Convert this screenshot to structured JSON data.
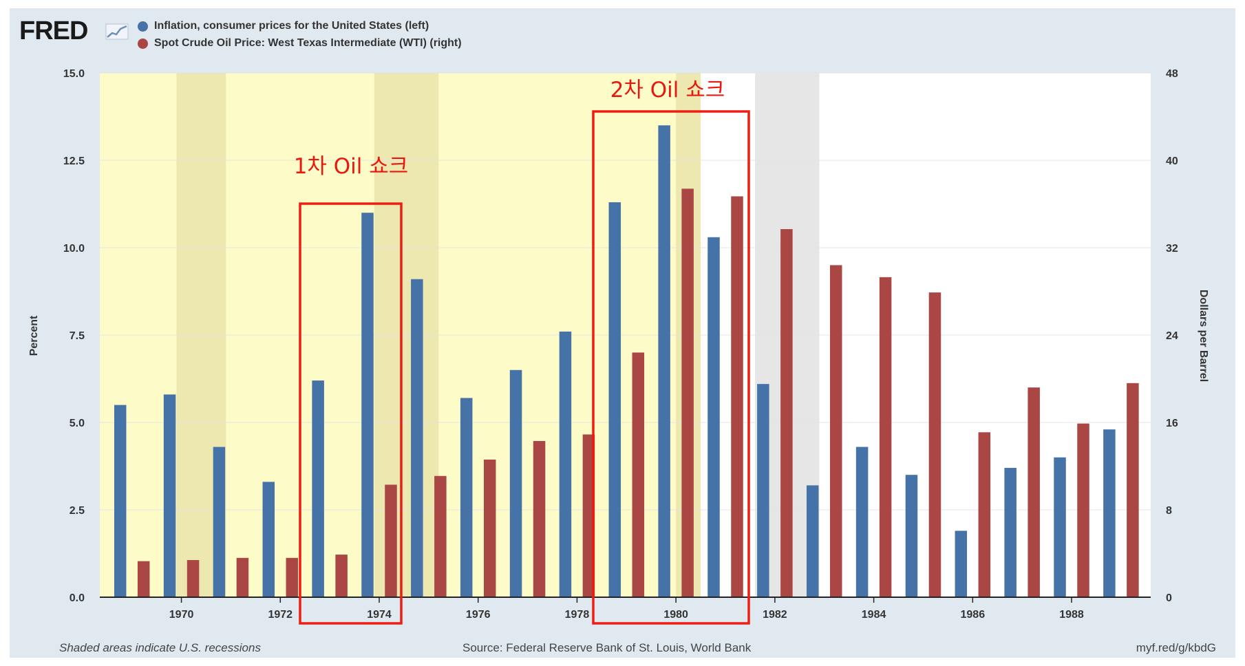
{
  "header": {
    "logo": "FRED",
    "legend": [
      {
        "label": "Inflation, consumer prices for the United States (left)",
        "color": "#4572a7"
      },
      {
        "label": "Spot Crude Oil Price: West Texas Intermediate (WTI) (right)",
        "color": "#aa4643"
      }
    ]
  },
  "footer": {
    "note": "Shaded areas indicate U.S. recessions",
    "source": "Source: Federal Reserve Bank of St. Louis, World Bank",
    "link": "myf.red/g/kbdG"
  },
  "annotations": [
    {
      "label": "1차 Oil 쇼크",
      "years": [
        1973,
        1974
      ]
    },
    {
      "label": "2차 Oil 쇼크",
      "years": [
        1979,
        1981
      ]
    }
  ],
  "highlight": {
    "label": "",
    "from": 1968,
    "to": 1980.5,
    "color": "#fdfbc8"
  },
  "chart_data": {
    "type": "bar",
    "categories": [
      1969,
      1970,
      1971,
      1972,
      1973,
      1974,
      1975,
      1976,
      1977,
      1978,
      1979,
      1980,
      1981,
      1982,
      1983,
      1984,
      1985,
      1986,
      1987,
      1988,
      1989
    ],
    "x_tick_labels": [
      "1970",
      "1972",
      "1974",
      "1976",
      "1978",
      "1980",
      "1982",
      "1984",
      "1986",
      "1988"
    ],
    "series": [
      {
        "name": "Inflation, consumer prices for the United States (left)",
        "axis": "left",
        "color": "#4572a7",
        "values": [
          5.5,
          5.8,
          4.3,
          3.3,
          6.2,
          11.0,
          9.1,
          5.7,
          6.5,
          7.6,
          11.3,
          13.5,
          10.3,
          6.1,
          3.2,
          4.3,
          3.5,
          1.9,
          3.7,
          4.0,
          4.8
        ]
      },
      {
        "name": "Spot Crude Oil Price: West Texas Intermediate (WTI) (right)",
        "axis": "right",
        "color": "#aa4643",
        "values": [
          3.3,
          3.4,
          3.6,
          3.6,
          3.9,
          10.3,
          11.1,
          12.6,
          14.3,
          14.9,
          22.4,
          37.4,
          36.7,
          33.7,
          30.4,
          29.3,
          27.9,
          15.1,
          19.2,
          15.9,
          19.6
        ]
      }
    ],
    "y_left": {
      "label": "Percent",
      "range": [
        0,
        15
      ],
      "ticks": [
        "0.0",
        "2.5",
        "5.0",
        "7.5",
        "10.0",
        "12.5",
        "15.0"
      ]
    },
    "y_right": {
      "label": "Dollars per Barrel",
      "range": [
        0,
        48
      ],
      "ticks": [
        "0",
        "8",
        "16",
        "24",
        "32",
        "40",
        "48"
      ]
    },
    "recessions": [
      [
        1969.9,
        1970.9
      ],
      [
        1973.9,
        1975.2
      ],
      [
        1980.0,
        1980.5
      ],
      [
        1981.6,
        1982.9
      ]
    ],
    "grid": true
  }
}
